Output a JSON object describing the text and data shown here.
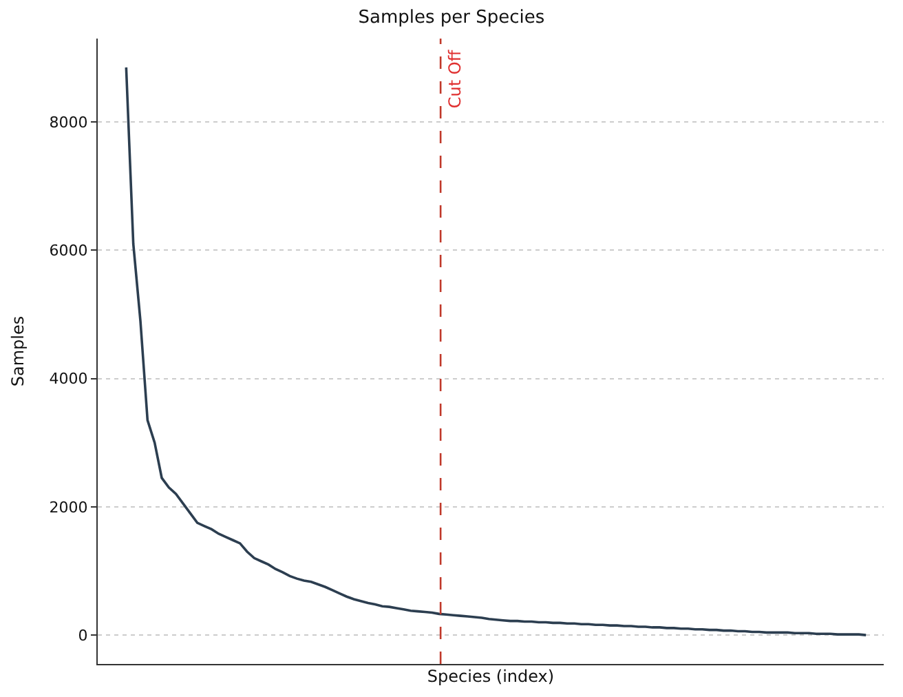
{
  "chart_data": {
    "type": "line",
    "title": "Samples per Species",
    "xlabel": "Species (index)",
    "ylabel": "Samples",
    "categories": [
      null,
      null,
      null,
      null,
      null,
      null,
      null,
      null,
      null,
      null,
      null,
      null,
      null,
      null,
      null,
      null,
      null,
      null,
      null,
      null,
      null,
      null,
      null,
      null,
      null,
      null,
      null,
      null,
      null,
      null,
      null,
      null,
      null,
      null,
      null,
      null,
      null,
      null,
      null,
      null,
      null,
      null,
      null,
      null,
      null,
      null,
      null,
      null,
      null,
      null,
      null,
      null,
      null,
      null,
      null,
      null,
      null,
      null,
      null,
      null,
      null,
      null,
      null,
      null,
      null,
      null,
      null,
      null,
      null,
      null,
      null,
      null,
      null,
      null,
      null,
      null,
      null,
      null,
      null,
      null,
      null,
      null,
      null,
      null,
      null,
      null,
      null,
      null,
      null,
      null,
      null,
      null,
      null,
      null,
      null,
      null,
      null,
      null,
      null,
      null,
      null,
      null,
      null,
      null,
      null
    ],
    "series": [
      {
        "color": "#2c3e50",
        "values": [
          8850,
          6100,
          4900,
          3350,
          3000,
          2450,
          2300,
          2200,
          2050,
          1900,
          1750,
          1700,
          1650,
          1580,
          1530,
          1480,
          1430,
          1300,
          1200,
          1150,
          1100,
          1030,
          980,
          920,
          880,
          850,
          830,
          790,
          750,
          700,
          650,
          600,
          560,
          530,
          500,
          480,
          450,
          440,
          420,
          400,
          380,
          370,
          360,
          350,
          330,
          320,
          310,
          300,
          290,
          280,
          270,
          250,
          240,
          230,
          220,
          220,
          210,
          210,
          200,
          200,
          190,
          190,
          180,
          180,
          170,
          170,
          160,
          160,
          150,
          150,
          140,
          140,
          130,
          130,
          120,
          120,
          110,
          110,
          100,
          100,
          90,
          90,
          80,
          80,
          70,
          70,
          60,
          60,
          50,
          50,
          40,
          40,
          40,
          40,
          30,
          30,
          30,
          20,
          20,
          20,
          10,
          10,
          10,
          10,
          0
        ]
      }
    ],
    "ylim": [
      -450,
      9300
    ],
    "yticks": [
      0,
      2000,
      4000,
      6000,
      8000
    ],
    "grid": "y",
    "tick_labels": "y",
    "line_style": "solid",
    "marker": "none",
    "annotations": [
      "Cut Off"
    ]
  }
}
